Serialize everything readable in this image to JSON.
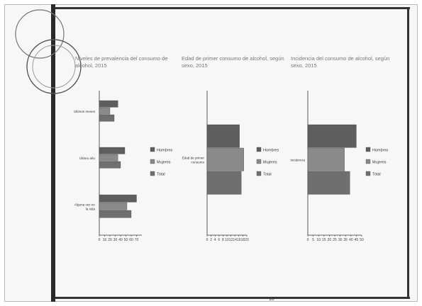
{
  "colors": {
    "hombres": "#5e5e5e",
    "mujeres": "#8a8a8a",
    "total": "#6f6f6f",
    "axis": "#333333"
  },
  "page_number": "10",
  "chart_data": [
    {
      "type": "bar",
      "orientation": "horizontal",
      "title": "Niveles de prevalencia del consumo de alcohol, 2015",
      "categories": [
        "Alguna vez en la vida",
        "Último año",
        "Últimos meses"
      ],
      "series": [
        {
          "name": "Hombres",
          "values": [
            70,
            48,
            35
          ]
        },
        {
          "name": "Mujeres",
          "values": [
            52,
            35,
            20
          ]
        },
        {
          "name": "Total",
          "values": [
            60,
            40,
            28
          ]
        }
      ],
      "xlim": [
        0,
        80
      ],
      "xticks": [
        "0",
        "10",
        "20",
        "30",
        "40",
        "50",
        "60",
        "70"
      ],
      "legend_position": "right"
    },
    {
      "type": "bar",
      "orientation": "horizontal",
      "title": "Edad de primer consumo de alcohol, según sexo, 2015",
      "categories": [
        "Edad de primer consumo"
      ],
      "series": [
        {
          "name": "Hombres",
          "values": [
            16.3
          ]
        },
        {
          "name": "Mujeres",
          "values": [
            18.5
          ]
        },
        {
          "name": "Total",
          "values": [
            17.2
          ]
        }
      ],
      "xlim": [
        0,
        20
      ],
      "xticks": [
        "0",
        "2",
        "4",
        "6",
        "8",
        "10",
        "12",
        "14",
        "16",
        "18",
        "20"
      ],
      "legend_position": "right"
    },
    {
      "type": "bar",
      "orientation": "horizontal",
      "title": "Incidencia del consumo de alcohol, según sexo, 2015",
      "categories": [
        "Incidencia"
      ],
      "series": [
        {
          "name": "Hombres",
          "values": [
            45
          ]
        },
        {
          "name": "Mujeres",
          "values": [
            34
          ]
        },
        {
          "name": "Total",
          "values": [
            39
          ]
        }
      ],
      "xlim": [
        0,
        50
      ],
      "xticks": [
        "0",
        "5",
        "10",
        "15",
        "20",
        "25",
        "30",
        "35",
        "40",
        "45",
        "50"
      ],
      "legend_position": "right"
    }
  ]
}
